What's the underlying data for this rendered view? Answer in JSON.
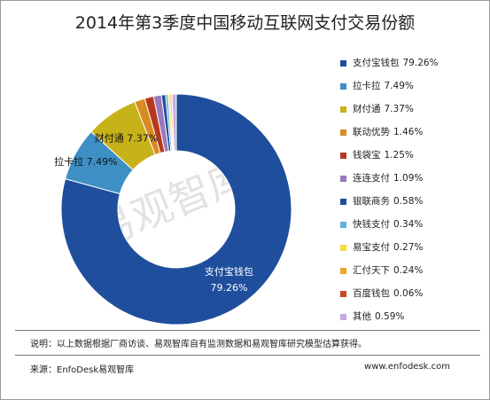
{
  "title": "2014年第3季度中国移动互联网支付交易份额",
  "watermark": "易观智库",
  "note": "说明：以上数据根据厂商访谈、易观智库自有监测数据和易观智库研究模型估算获得。",
  "source": "来源：EnfoDesk易观智库",
  "website": "www.enfodesk.com",
  "chart_data": {
    "type": "pie",
    "variant": "donut",
    "title": "2014年第3季度中国移动互联网支付交易份额",
    "legend_position": "right",
    "slices": [
      {
        "name": "支付宝钱包",
        "value": 79.26,
        "label": "79.26%",
        "color": "#1f4e9c"
      },
      {
        "name": "拉卡拉",
        "value": 7.49,
        "label": "7.49%",
        "color": "#3d8fc4"
      },
      {
        "name": "财付通",
        "value": 7.37,
        "label": "7.37%",
        "color": "#c7b219"
      },
      {
        "name": "联动优势",
        "value": 1.46,
        "label": "1.46%",
        "color": "#d98a20"
      },
      {
        "name": "钱袋宝",
        "value": 1.25,
        "label": "1.25%",
        "color": "#b6391d"
      },
      {
        "name": "连连支付",
        "value": 1.09,
        "label": "1.09%",
        "color": "#9a78bd"
      },
      {
        "name": "银联商务",
        "value": 0.58,
        "label": "0.58%",
        "color": "#1f4e9c"
      },
      {
        "name": "快钱支付",
        "value": 0.34,
        "label": "0.34%",
        "color": "#5fb0da"
      },
      {
        "name": "易宝支付",
        "value": 0.27,
        "label": "0.27%",
        "color": "#f2dd3c"
      },
      {
        "name": "汇付天下",
        "value": 0.24,
        "label": "0.24%",
        "color": "#f0a628"
      },
      {
        "name": "百度钱包",
        "value": 0.06,
        "label": "0.06%",
        "color": "#c44a24"
      },
      {
        "name": "其他",
        "value": 0.59,
        "label": "0.59%",
        "color": "#c8a8dc"
      }
    ],
    "data_labels": [
      {
        "name": "支付宝钱包",
        "text": "79.26%"
      },
      {
        "name": "拉卡拉",
        "text": "7.49%"
      },
      {
        "name": "财付通",
        "text": "7.37%"
      }
    ]
  }
}
